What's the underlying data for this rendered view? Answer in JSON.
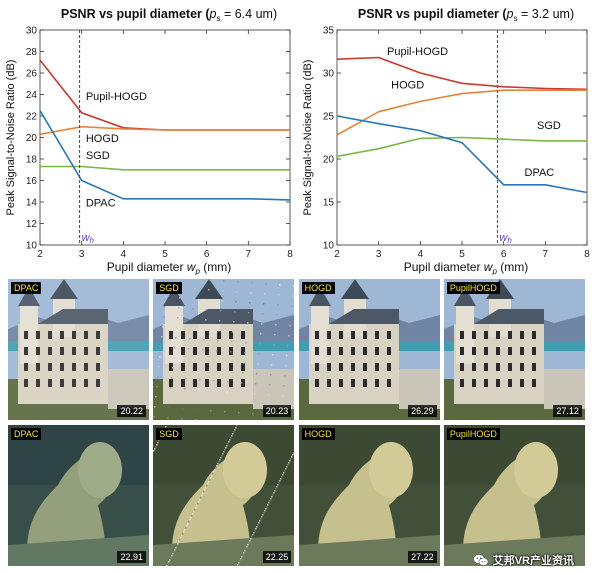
{
  "chart_data": [
    {
      "type": "line",
      "title_main": "PSNR vs pupil diameter (",
      "title_param": "p",
      "title_sub": "s",
      "title_value": " = 6.4 um)",
      "xlabel_main": "Pupil diameter ",
      "xlabel_var": "w",
      "xlabel_sub": "p",
      "xlabel_unit": " (mm)",
      "ylabel": "Peak Signal-to-Noise Ratio (dB)",
      "xlim": [
        2,
        8
      ],
      "ylim": [
        10,
        30
      ],
      "xticks": [
        2,
        3,
        4,
        5,
        6,
        7,
        8
      ],
      "yticks": [
        10,
        12,
        14,
        16,
        18,
        20,
        22,
        24,
        26,
        28,
        30
      ],
      "vline": {
        "x": 2.95,
        "label": "w",
        "label_sub": "h"
      },
      "series": [
        {
          "name": "Pupil-HOGD",
          "color": "#c83a32",
          "x": [
            2,
            3,
            4,
            5,
            6,
            7,
            8
          ],
          "y": [
            27.2,
            22.3,
            20.9,
            20.7,
            20.7,
            20.7,
            20.7
          ],
          "label_x": 3.1,
          "label_y": 23.5
        },
        {
          "name": "HOGD",
          "color": "#e8833a",
          "x": [
            2,
            3,
            4,
            5,
            6,
            7,
            8
          ],
          "y": [
            20.3,
            21.0,
            20.8,
            20.7,
            20.7,
            20.7,
            20.7
          ],
          "label_x": 3.1,
          "label_y": 19.6
        },
        {
          "name": "SGD",
          "color": "#7ab648",
          "x": [
            2,
            3,
            4,
            5,
            6,
            7,
            8
          ],
          "y": [
            17.3,
            17.3,
            17.0,
            17.0,
            17.0,
            17.0,
            17.0
          ],
          "label_x": 3.1,
          "label_y": 18.0
        },
        {
          "name": "DPAC",
          "color": "#2a77b4",
          "x": [
            2,
            3,
            4,
            5,
            6,
            7,
            8
          ],
          "y": [
            22.5,
            16.0,
            14.3,
            14.3,
            14.3,
            14.3,
            14.2
          ],
          "label_x": 3.1,
          "label_y": 13.6
        }
      ]
    },
    {
      "type": "line",
      "title_main": "PSNR vs pupil diameter (",
      "title_param": "p",
      "title_sub": "s",
      "title_value": " = 3.2 um)",
      "xlabel_main": "Pupil diameter ",
      "xlabel_var": "w",
      "xlabel_sub": "p",
      "xlabel_unit": " (mm)",
      "ylabel": "Peak Signal-to-Noise Ratio (dB)",
      "xlim": [
        2,
        8
      ],
      "ylim": [
        10,
        35
      ],
      "xticks": [
        2,
        3,
        4,
        5,
        6,
        7,
        8
      ],
      "yticks": [
        10,
        15,
        20,
        25,
        30,
        35
      ],
      "vline": {
        "x": 5.85,
        "label": "w",
        "label_sub": "h"
      },
      "series": [
        {
          "name": "Pupil-HOGD",
          "color": "#c83a32",
          "x": [
            2,
            3,
            4,
            5,
            6,
            7,
            8
          ],
          "y": [
            31.6,
            31.8,
            30.0,
            28.8,
            28.4,
            28.2,
            28.1
          ],
          "label_x": 3.2,
          "label_y": 32.1
        },
        {
          "name": "HOGD",
          "color": "#e8833a",
          "x": [
            2,
            3,
            4,
            5,
            6,
            7,
            8
          ],
          "y": [
            22.8,
            25.5,
            26.7,
            27.6,
            28.0,
            28.0,
            28.0
          ],
          "label_x": 3.3,
          "label_y": 28.2
        },
        {
          "name": "SGD",
          "color": "#7ab648",
          "x": [
            2,
            3,
            4,
            5,
            6,
            7,
            8
          ],
          "y": [
            20.3,
            21.2,
            22.4,
            22.5,
            22.3,
            22.1,
            22.1
          ],
          "label_x": 6.8,
          "label_y": 23.5
        },
        {
          "name": "DPAC",
          "color": "#2a77b4",
          "x": [
            2,
            3,
            4,
            5,
            6,
            7,
            8
          ],
          "y": [
            25.0,
            24.1,
            23.3,
            21.9,
            17.0,
            17.0,
            16.1
          ],
          "label_x": 6.5,
          "label_y": 18.0
        }
      ]
    }
  ],
  "images": {
    "rows": [
      {
        "scene": "castle",
        "tiles": [
          {
            "method": "DPAC",
            "psnr": "20.22"
          },
          {
            "method": "SGD",
            "psnr": "20.23"
          },
          {
            "method": "HOGD",
            "psnr": "26.29"
          },
          {
            "method": "PupilHOGD",
            "psnr": "27.12"
          }
        ]
      },
      {
        "scene": "figure",
        "tiles": [
          {
            "method": "DPAC",
            "psnr": "22.91"
          },
          {
            "method": "SGD",
            "psnr": "22.25"
          },
          {
            "method": "HOGD",
            "psnr": "27.22"
          },
          {
            "method": "PupilHOGD",
            "psnr": ""
          }
        ]
      }
    ]
  },
  "watermark": {
    "text": "艾邦VR产业资讯",
    "icon": "wechat-icon"
  }
}
